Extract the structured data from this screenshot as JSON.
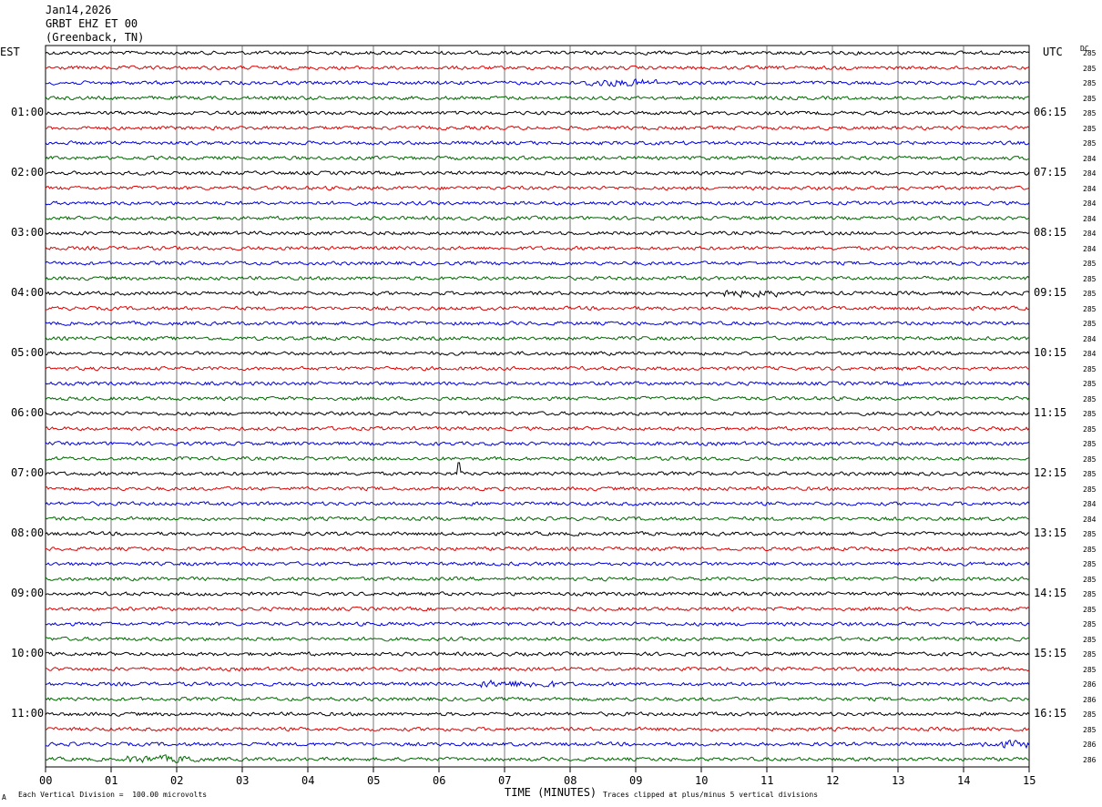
{
  "header": {
    "date": "Jan14,2026",
    "station": "GRBT EHZ ET 00",
    "location": "(Greenback, TN)"
  },
  "left_zone": "EST",
  "right_zone": "UTC",
  "dc_header": "DC",
  "footer": {
    "scale_note": "Each Vertical Division =  100.00 microvolts",
    "axis_title": "TIME (MINUTES)",
    "clip_note": "Traces clipped at plus/minus 5 vertical divisions",
    "corner_mark": "A"
  },
  "chart_data": {
    "type": "line",
    "xlabel": "TIME (MINUTES)",
    "xlim": [
      0,
      15
    ],
    "x_ticks": [
      "00",
      "01",
      "02",
      "03",
      "04",
      "05",
      "06",
      "07",
      "08",
      "09",
      "10",
      "11",
      "12",
      "13",
      "14",
      "15"
    ],
    "est_labels": [
      "01:00",
      "02:00",
      "03:00",
      "04:00",
      "05:00",
      "06:00",
      "07:00",
      "08:00",
      "09:00",
      "10:00",
      "11:00"
    ],
    "utc_labels": [
      "06:15",
      "07:15",
      "08:15",
      "09:15",
      "10:15",
      "11:15",
      "12:15",
      "13:15",
      "14:15",
      "15:15",
      "16:15"
    ],
    "trace_count": 48,
    "trace_colors": [
      "#000000",
      "#dd0000",
      "#0000dd",
      "#006600"
    ],
    "dc_offsets": [
      "285",
      "285",
      "285",
      "285",
      "285",
      "285",
      "285",
      "284",
      "284",
      "284",
      "284",
      "284",
      "284",
      "284",
      "285",
      "285",
      "285",
      "285",
      "285",
      "284",
      "284",
      "285",
      "285",
      "285",
      "285",
      "285",
      "285",
      "285",
      "285",
      "285",
      "284",
      "284",
      "285",
      "285",
      "285",
      "285",
      "285",
      "285",
      "285",
      "285",
      "285",
      "285",
      "286",
      "286",
      "285",
      "285",
      "286",
      "286"
    ],
    "events": [
      {
        "trace": 28,
        "minute": 6.3,
        "amplitude": "spike"
      },
      {
        "trace": 2,
        "minute": 8.8,
        "amplitude": "burst"
      },
      {
        "trace": 16,
        "minute": 10.6,
        "amplitude": "burst"
      },
      {
        "trace": 46,
        "minute": 14.8,
        "amplitude": "burst"
      },
      {
        "trace": 47,
        "minute": 1.8,
        "amplitude": "burst"
      },
      {
        "trace": 42,
        "minute": 7.2,
        "amplitude": "burst"
      }
    ]
  }
}
